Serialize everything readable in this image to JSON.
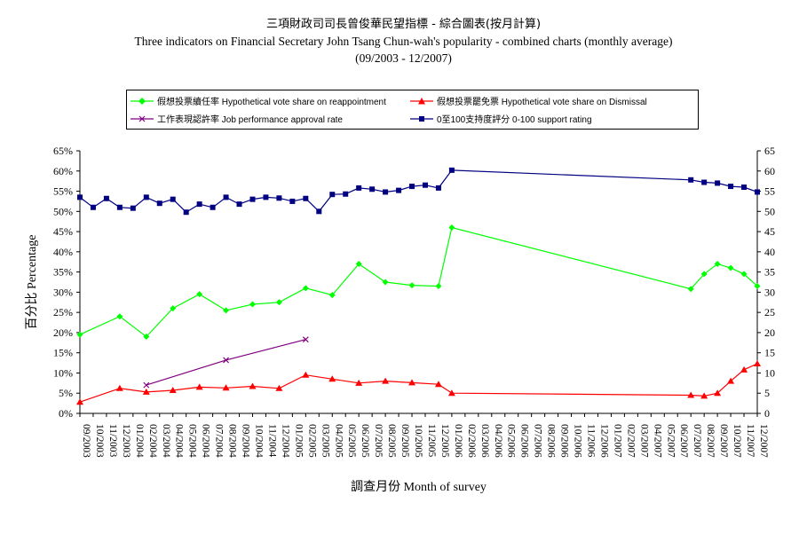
{
  "title": {
    "line1": "三項財政司司長曾俊華民望指標 - 綜合圖表(按月計算)",
    "line2": "Three indicators on Financial Secretary John Tsang Chun-wah's popularity - combined charts (monthly average)",
    "line3": "(09/2003 - 12/2007)"
  },
  "colors": {
    "reappointment": "#00ff00",
    "dismissal": "#ff0000",
    "approval": "#800080",
    "rating": "#000080"
  },
  "legend": {
    "reappointment": "假想投票續任率 Hypothetical vote share on reappointment",
    "dismissal": "假想投票罷免票 Hypothetical vote share on Dismissal",
    "approval": "工作表現認許率 Job performance approval rate",
    "rating": "0至100支持度評分 0-100 support rating"
  },
  "chart_data": {
    "type": "line",
    "xlabel": "調查月份 Month of survey",
    "ylabel": "百分比 Percentage",
    "ylim_left": [
      0,
      65
    ],
    "ylim_right": [
      0,
      65
    ],
    "y_ticks_left": [
      "0%",
      "5%",
      "10%",
      "15%",
      "20%",
      "25%",
      "30%",
      "35%",
      "40%",
      "45%",
      "50%",
      "55%",
      "60%",
      "65%"
    ],
    "y_ticks_right": [
      "0",
      "5",
      "10",
      "15",
      "20",
      "25",
      "30",
      "35",
      "40",
      "45",
      "50",
      "55",
      "60",
      "65"
    ],
    "categories": [
      "09/2003",
      "10/2003",
      "11/2003",
      "12/2003",
      "01/2004",
      "02/2004",
      "03/2004",
      "04/2004",
      "05/2004",
      "06/2004",
      "07/2004",
      "08/2004",
      "09/2004",
      "10/2004",
      "11/2004",
      "12/2004",
      "01/2005",
      "02/2005",
      "03/2005",
      "04/2005",
      "05/2005",
      "06/2005",
      "07/2005",
      "08/2005",
      "09/2005",
      "10/2005",
      "11/2005",
      "12/2005",
      "01/2006",
      "02/2006",
      "03/2006",
      "04/2006",
      "05/2006",
      "06/2006",
      "07/2006",
      "08/2006",
      "09/2006",
      "10/2006",
      "11/2006",
      "12/2006",
      "01/2007",
      "02/2007",
      "03/2007",
      "04/2007",
      "05/2007",
      "06/2007",
      "07/2007",
      "08/2007",
      "09/2007",
      "10/2007",
      "11/2007",
      "12/2007"
    ],
    "series": [
      {
        "name": "假想投票續任率 Hypothetical vote share on reappointment",
        "axis": "left",
        "points": [
          [
            0,
            19.5
          ],
          [
            3,
            24
          ],
          [
            5,
            19
          ],
          [
            7,
            26
          ],
          [
            9,
            29.5
          ],
          [
            11,
            25.5
          ],
          [
            13,
            27
          ],
          [
            15,
            27.5
          ],
          [
            17,
            31
          ],
          [
            19,
            29.3
          ],
          [
            21,
            37
          ],
          [
            23,
            32.5
          ],
          [
            25,
            31.7
          ],
          [
            27,
            31.5
          ],
          [
            28,
            46
          ],
          [
            46,
            30.8
          ],
          [
            47,
            34.5
          ],
          [
            48,
            37
          ],
          [
            49,
            36
          ],
          [
            50,
            34.5
          ],
          [
            51,
            31.5
          ]
        ]
      },
      {
        "name": "假想投票罷免票 Hypothetical vote share on Dismissal",
        "axis": "left",
        "points": [
          [
            0,
            2.8
          ],
          [
            3,
            6.2
          ],
          [
            5,
            5.3
          ],
          [
            7,
            5.7
          ],
          [
            9,
            6.5
          ],
          [
            11,
            6.3
          ],
          [
            13,
            6.7
          ],
          [
            15,
            6.2
          ],
          [
            17,
            9.5
          ],
          [
            19,
            8.5
          ],
          [
            21,
            7.5
          ],
          [
            23,
            8
          ],
          [
            25,
            7.6
          ],
          [
            27,
            7.2
          ],
          [
            28,
            5
          ],
          [
            46,
            4.5
          ],
          [
            47,
            4.3
          ],
          [
            48,
            5
          ],
          [
            49,
            8
          ],
          [
            50,
            10.8
          ],
          [
            51,
            12.3
          ]
        ]
      },
      {
        "name": "工作表現認許率 Job performance approval rate",
        "axis": "left",
        "points": [
          [
            5,
            7
          ],
          [
            11,
            13.2
          ],
          [
            17,
            18.3
          ]
        ]
      },
      {
        "name": "0至100支持度評分 0-100 support rating",
        "axis": "right",
        "points": [
          [
            0,
            53.5
          ],
          [
            1,
            51
          ],
          [
            2,
            53.2
          ],
          [
            3,
            51
          ],
          [
            4,
            50.8
          ],
          [
            5,
            53.5
          ],
          [
            6,
            52
          ],
          [
            7,
            53
          ],
          [
            8,
            49.8
          ],
          [
            9,
            51.8
          ],
          [
            10,
            51
          ],
          [
            11,
            53.5
          ],
          [
            12,
            51.8
          ],
          [
            13,
            53
          ],
          [
            14,
            53.5
          ],
          [
            15,
            53.3
          ],
          [
            16,
            52.5
          ],
          [
            17,
            53.2
          ],
          [
            18,
            50
          ],
          [
            19,
            54.2
          ],
          [
            20,
            54.3
          ],
          [
            21,
            55.8
          ],
          [
            22,
            55.5
          ],
          [
            23,
            54.8
          ],
          [
            24,
            55.2
          ],
          [
            25,
            56.2
          ],
          [
            26,
            56.5
          ],
          [
            27,
            55.8
          ],
          [
            28,
            60.2
          ],
          [
            46,
            57.8
          ],
          [
            47,
            57.2
          ],
          [
            48,
            57
          ],
          [
            49,
            56.2
          ],
          [
            50,
            56
          ],
          [
            51,
            54.8
          ]
        ]
      }
    ]
  }
}
